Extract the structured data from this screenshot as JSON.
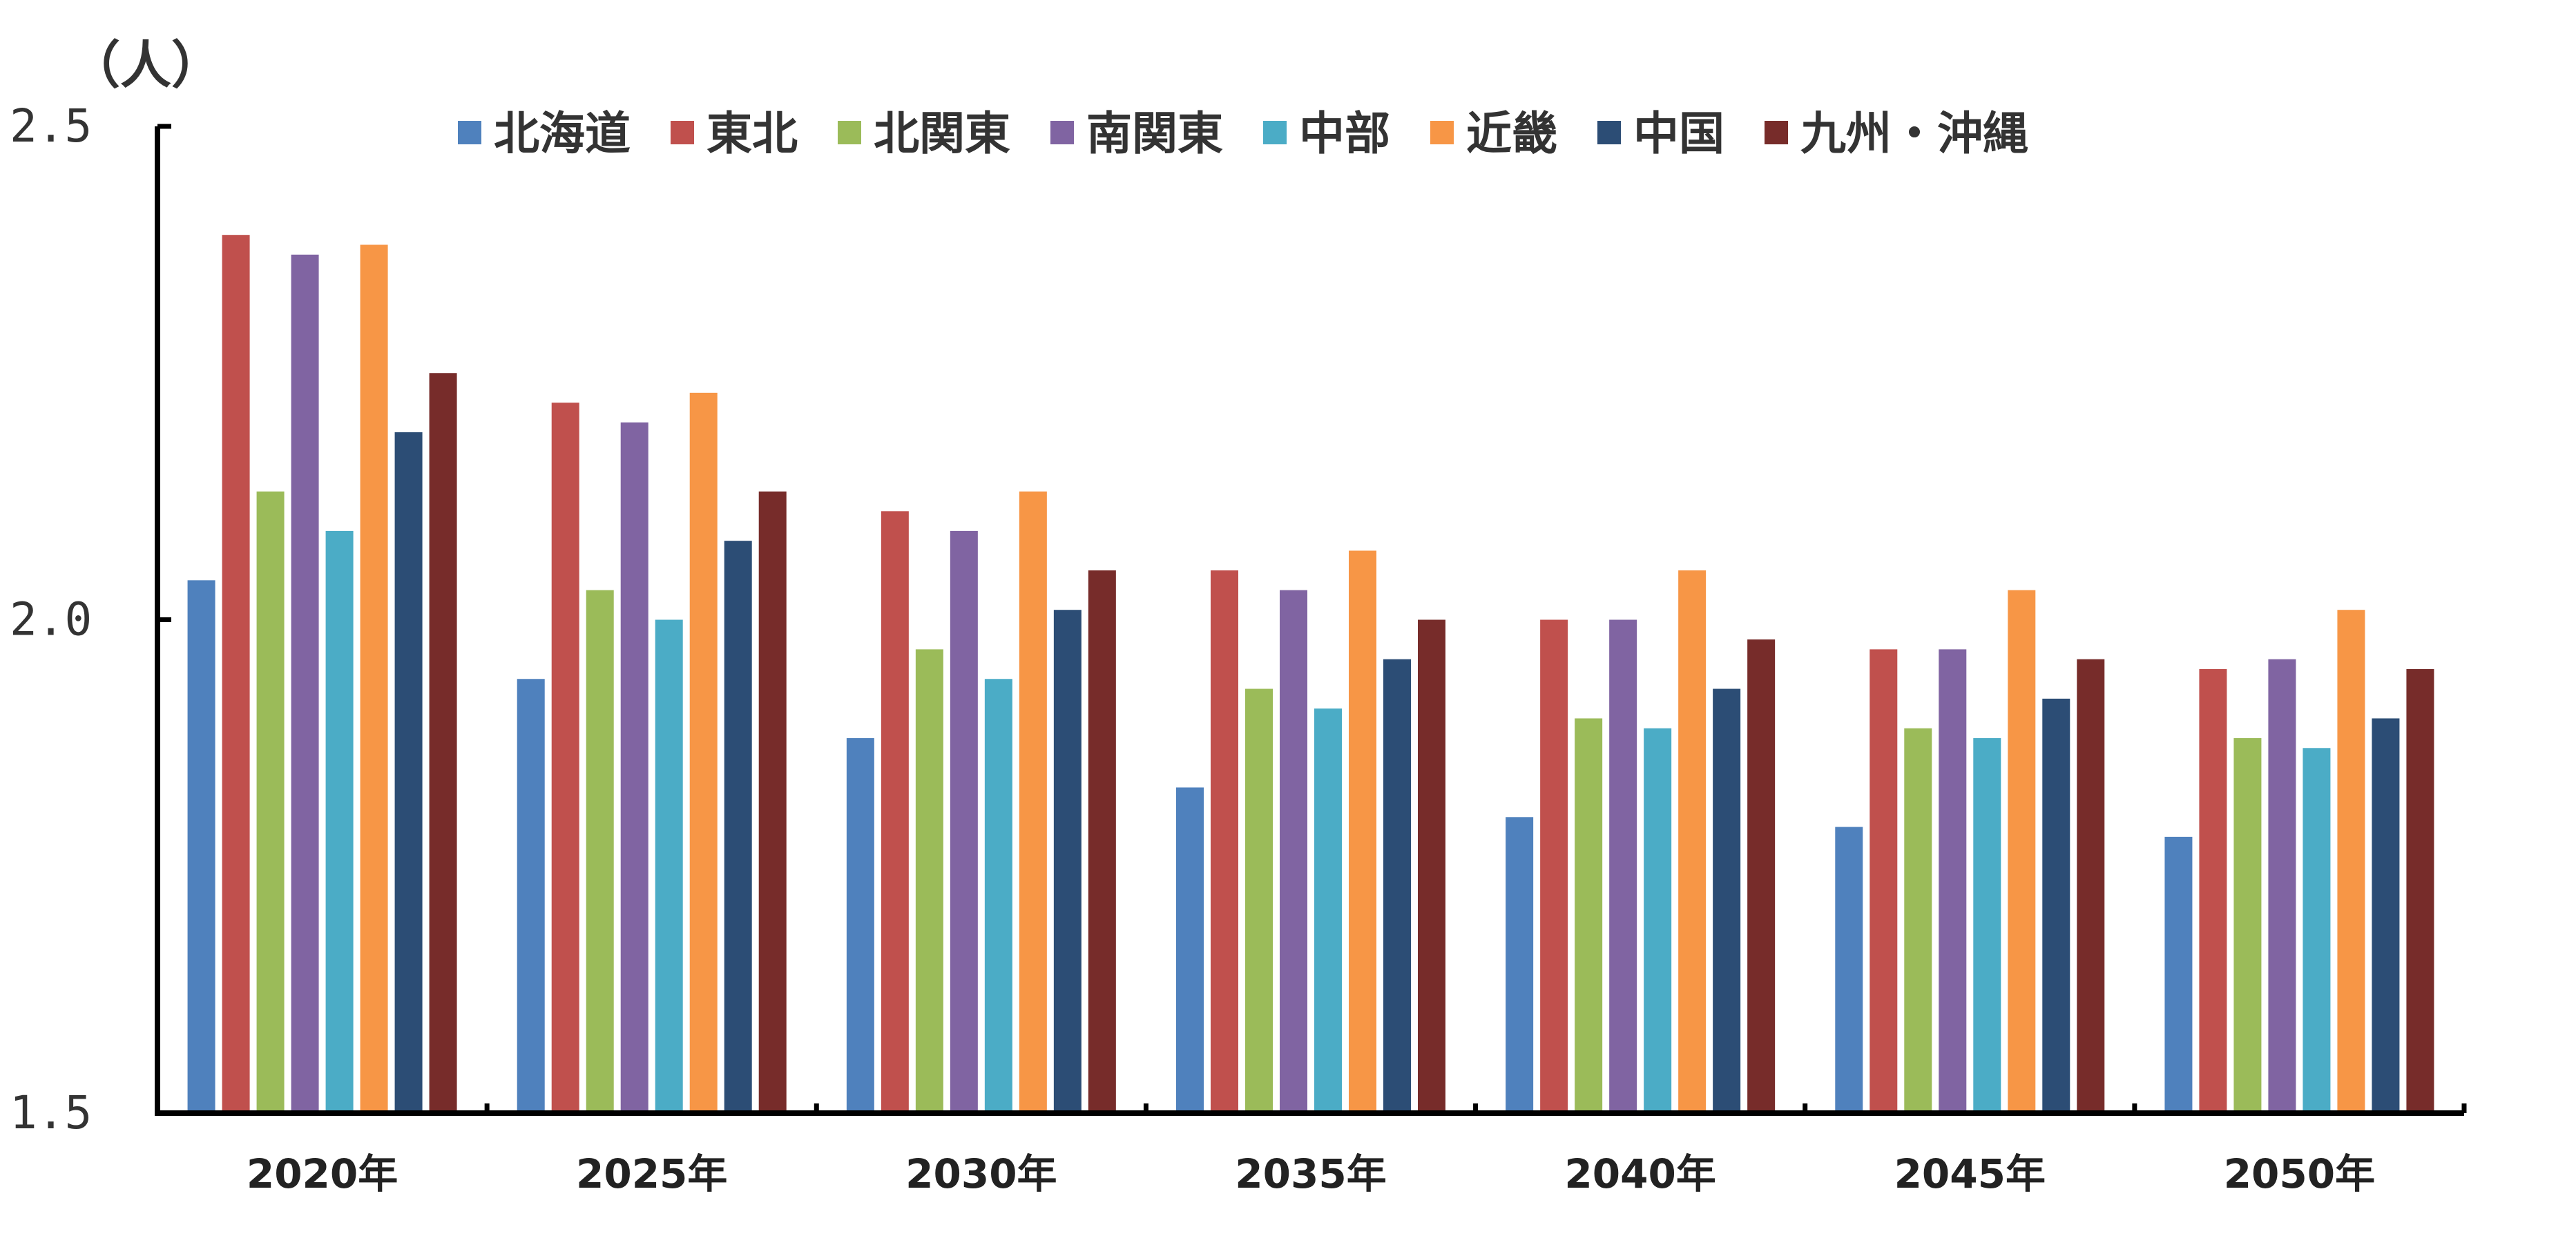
{
  "chart_data": {
    "type": "bar",
    "unit_label": "（人）",
    "categories": [
      "2020年",
      "2025年",
      "2030年",
      "2035年",
      "2040年",
      "2045年",
      "2050年"
    ],
    "ylim": [
      1.5,
      2.5
    ],
    "yticks": [
      "1.5",
      "2.0",
      "2.5"
    ],
    "grid": false,
    "legend_position": "top",
    "series": [
      {
        "name": "北海道",
        "color": "#4F81BD",
        "values": [
          2.04,
          1.94,
          1.88,
          1.83,
          1.8,
          1.79,
          1.78
        ]
      },
      {
        "name": "東北",
        "color": "#C0504D",
        "values": [
          2.39,
          2.22,
          2.11,
          2.05,
          2.0,
          1.97,
          1.95
        ]
      },
      {
        "name": "北関東",
        "color": "#9BBB59",
        "values": [
          2.13,
          2.03,
          1.97,
          1.93,
          1.9,
          1.89,
          1.88
        ]
      },
      {
        "name": "南関東",
        "color": "#8064A2",
        "values": [
          2.37,
          2.2,
          2.09,
          2.03,
          2.0,
          1.97,
          1.96
        ]
      },
      {
        "name": "中部",
        "color": "#4BACC6",
        "values": [
          2.09,
          2.0,
          1.94,
          1.91,
          1.89,
          1.88,
          1.87
        ]
      },
      {
        "name": "近畿",
        "color": "#F79646",
        "values": [
          2.38,
          2.23,
          2.13,
          2.07,
          2.05,
          2.03,
          2.01
        ]
      },
      {
        "name": "中国",
        "color": "#2C4D75",
        "values": [
          2.19,
          2.08,
          2.01,
          1.96,
          1.93,
          1.92,
          1.9
        ]
      },
      {
        "name": "九州・沖縄",
        "color": "#772C2A",
        "values": [
          2.25,
          2.13,
          2.05,
          2.0,
          1.98,
          1.96,
          1.95
        ]
      }
    ]
  }
}
